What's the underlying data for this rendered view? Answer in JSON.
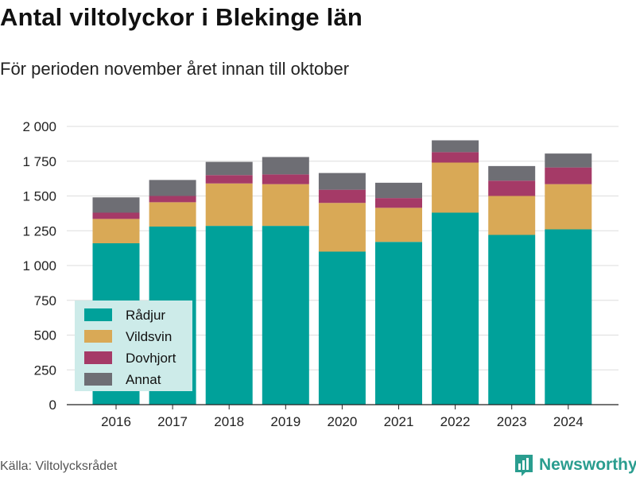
{
  "title": "Antal viltolyckor i Blekinge län",
  "subtitle": "För perioden november året innan till oktober",
  "source": "Källa: Viltolycksrådet",
  "brand": "Newsworthy",
  "colors": {
    "radjur": "#00a19a",
    "vildsvin": "#d9a956",
    "dovhjort": "#a53a67",
    "annat": "#6e6e74",
    "legend_bg": "#cdebe9",
    "grid": "#dddddd",
    "brand": "#2a9d8f"
  },
  "chart_data": {
    "type": "bar",
    "stacked": true,
    "categories": [
      "2016",
      "2017",
      "2018",
      "2019",
      "2020",
      "2021",
      "2022",
      "2023",
      "2024"
    ],
    "series": [
      {
        "name": "Rådjur",
        "values": [
          1160,
          1280,
          1285,
          1285,
          1100,
          1170,
          1380,
          1220,
          1260
        ]
      },
      {
        "name": "Vildsvin",
        "values": [
          175,
          175,
          305,
          300,
          350,
          245,
          360,
          280,
          325
        ]
      },
      {
        "name": "Dovhjort",
        "values": [
          45,
          45,
          60,
          70,
          95,
          70,
          75,
          110,
          120
        ]
      },
      {
        "name": "Annat",
        "values": [
          110,
          115,
          95,
          125,
          120,
          110,
          85,
          105,
          100
        ]
      }
    ],
    "yticks": [
      0,
      250,
      500,
      750,
      1000,
      1250,
      1500,
      1750,
      2000
    ],
    "ytick_labels": [
      "0",
      "250",
      "500",
      "750",
      "1 000",
      "1 250",
      "1 500",
      "1 750",
      "2 000"
    ],
    "ylim": [
      0,
      2000
    ],
    "grid": true,
    "legend_position": "bottom-left"
  }
}
